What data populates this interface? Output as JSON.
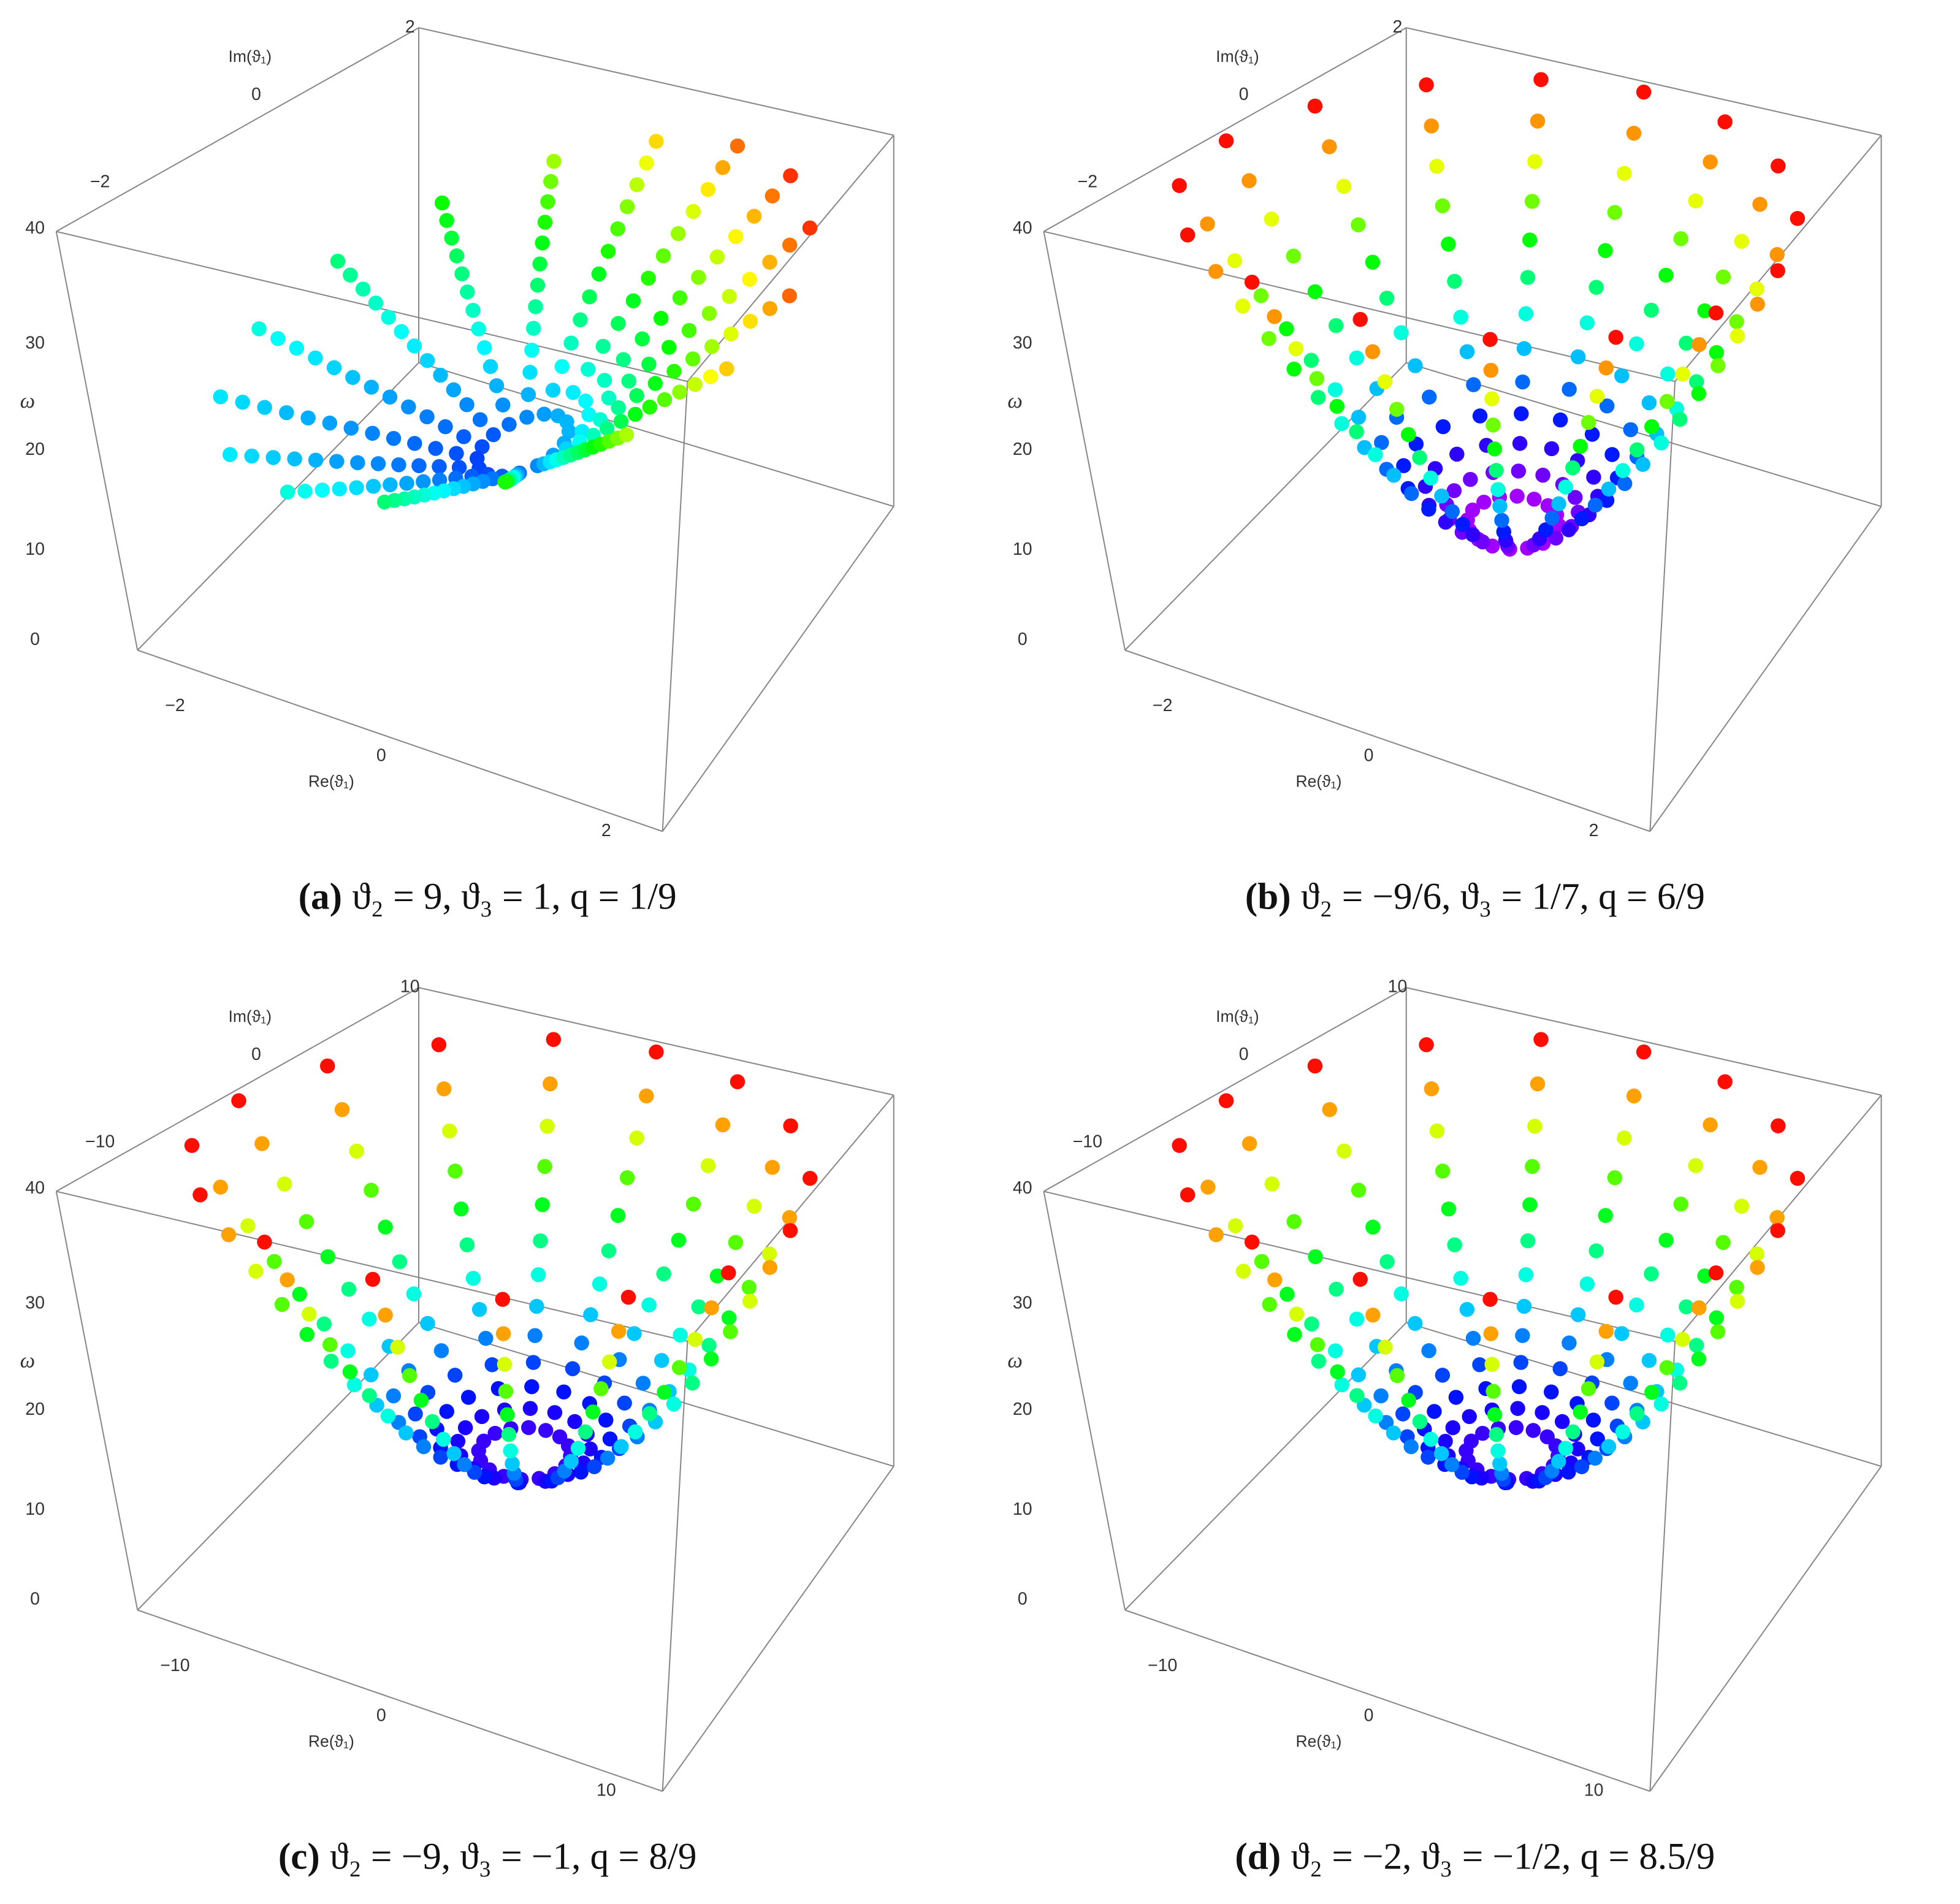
{
  "panels": [
    {
      "label": "(a)",
      "caption": "ϑ₂ = 9, ϑ₃ = 1, q = 1/9",
      "im_label": "Im(ϑ₁)",
      "im_ticks": [
        "2",
        "0",
        "−2"
      ],
      "omega_label": "ω",
      "omega_ticks": [
        "40",
        "30",
        "20",
        "10",
        "0"
      ],
      "re_label": "Re(ϑ₁)",
      "re_ticks": [
        "−2",
        "0",
        "2"
      ]
    },
    {
      "label": "(b)",
      "caption": "ϑ₂ = −9/6, ϑ₃ = 1/7, q = 6/9",
      "im_label": "Im(ϑ₁)",
      "im_ticks": [
        "2",
        "0",
        "−2"
      ],
      "omega_label": "ω",
      "omega_ticks": [
        "40",
        "30",
        "20",
        "10",
        "0"
      ],
      "re_label": "Re(ϑ₁)",
      "re_ticks": [
        "−2",
        "0",
        "2"
      ]
    },
    {
      "label": "(c)",
      "caption": "ϑ₂ = −9, ϑ₃ = −1, q = 8/9",
      "im_label": "Im(ϑ₁)",
      "im_ticks": [
        "10",
        "0",
        "−10"
      ],
      "omega_label": "ω",
      "omega_ticks": [
        "40",
        "30",
        "20",
        "10",
        "0"
      ],
      "re_label": "Re(ϑ₁)",
      "re_ticks": [
        "−10",
        "0",
        "10"
      ]
    },
    {
      "label": "(d)",
      "caption": "ϑ₂ = −2, ϑ₃ = −1/2, q = 8.5/9",
      "im_label": "Im(ϑ₁)",
      "im_ticks": [
        "10",
        "0",
        "−10"
      ],
      "omega_label": "ω",
      "omega_ticks": [
        "40",
        "30",
        "20",
        "10",
        "0"
      ],
      "re_label": "Re(ϑ₁)",
      "re_ticks": [
        "−10",
        "0",
        "10"
      ]
    }
  ]
}
